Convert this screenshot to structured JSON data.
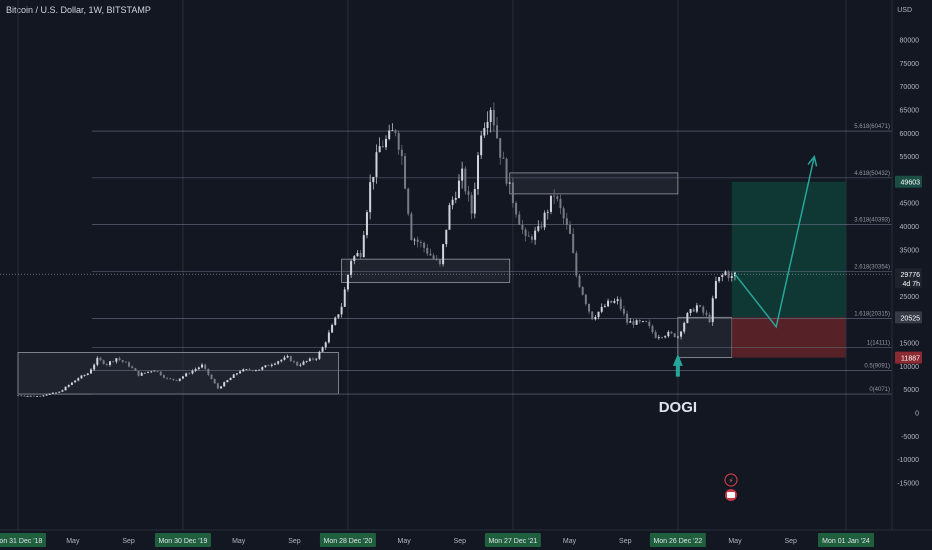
{
  "header": {
    "title": "Bitcoin / U.S. Dollar, 1W, BITSTAMP",
    "currency": "USD"
  },
  "chart_data": {
    "type": "candlestick",
    "symbol": "Bitcoin / U.S. Dollar",
    "interval": "1W",
    "exchange": "BITSTAMP",
    "yaxis": {
      "unit": "USD",
      "ticks": [
        80000,
        75000,
        70000,
        65000,
        60000,
        55000,
        50000,
        45000,
        40000,
        35000,
        30000,
        25000,
        15000,
        10000,
        5000,
        0,
        -5000,
        -10000,
        -15000
      ],
      "tick_labels": [
        "80000",
        "75000",
        "70000",
        "65000",
        "60000",
        "55000",
        "50000",
        "45000",
        "40000",
        "35000",
        "30000",
        "25000",
        "15000",
        "10000",
        "5000",
        "0",
        "-5000",
        "-10000",
        "-15000"
      ]
    },
    "xaxis": {
      "dates": [
        "2018-12-31",
        "2019-05-01",
        "2019-09-01",
        "2019-12-30",
        "2020-05-01",
        "2020-09-01",
        "2020-12-28",
        "2021-05-01",
        "2021-09-01",
        "2021-12-27",
        "2022-05-01",
        "2022-09-01",
        "2022-12-26",
        "2023-05-01",
        "2023-09-01",
        "2024-01-01"
      ],
      "labels": [
        "Mon 31 Dec '18",
        "May",
        "Sep",
        "Mon 30 Dec '19",
        "May",
        "Sep",
        "Mon 28 Dec '20",
        "May",
        "Sep",
        "Mon 27 Dec '21",
        "May",
        "Sep",
        "Mon 26 Dec '22",
        "May",
        "Sep",
        "Mon 01 Jan '24"
      ],
      "highlighted": [
        "Mon 31 Dec '18",
        "Mon 30 Dec '19",
        "Mon 28 Dec '20",
        "Mon 27 Dec '21",
        "Mon 26 Dec '22",
        "Mon 01 Jan '24"
      ]
    },
    "price_path": [
      [
        "2018-12-31",
        3800
      ],
      [
        "2019-02-10",
        3600
      ],
      [
        "2019-04-01",
        4500
      ],
      [
        "2019-05-13",
        7500
      ],
      [
        "2019-06-03",
        8500
      ],
      [
        "2019-06-24",
        11500
      ],
      [
        "2019-07-15",
        10500
      ],
      [
        "2019-08-05",
        11800
      ],
      [
        "2019-09-01",
        10300
      ],
      [
        "2019-09-23",
        8200
      ],
      [
        "2019-10-28",
        9300
      ],
      [
        "2019-11-25",
        7300
      ],
      [
        "2019-12-16",
        7100
      ],
      [
        "2020-01-13",
        8700
      ],
      [
        "2020-02-10",
        10200
      ],
      [
        "2020-03-16",
        5300
      ],
      [
        "2020-04-06",
        7000
      ],
      [
        "2020-05-04",
        9100
      ],
      [
        "2020-06-15",
        9400
      ],
      [
        "2020-07-27",
        11200
      ],
      [
        "2020-08-17",
        11900
      ],
      [
        "2020-09-07",
        10300
      ],
      [
        "2020-10-19",
        11900
      ],
      [
        "2020-11-02",
        14000
      ],
      [
        "2020-11-23",
        18500
      ],
      [
        "2020-12-14",
        23000
      ],
      [
        "2021-01-04",
        33000
      ],
      [
        "2021-01-25",
        34500
      ],
      [
        "2021-02-15",
        49000
      ],
      [
        "2021-03-08",
        57000
      ],
      [
        "2021-03-29",
        59000
      ],
      [
        "2021-04-12",
        61000
      ],
      [
        "2021-04-26",
        55000
      ],
      [
        "2021-05-17",
        38000
      ],
      [
        "2021-06-14",
        35500
      ],
      [
        "2021-07-19",
        31500
      ],
      [
        "2021-08-09",
        44000
      ],
      [
        "2021-09-06",
        51000
      ],
      [
        "2021-09-27",
        43000
      ],
      [
        "2021-10-18",
        61000
      ],
      [
        "2021-11-08",
        66000
      ],
      [
        "2021-11-29",
        56000
      ],
      [
        "2021-12-20",
        48000
      ],
      [
        "2022-01-24",
        37000
      ],
      [
        "2022-02-21",
        39000
      ],
      [
        "2022-03-28",
        47000
      ],
      [
        "2022-05-02",
        38000
      ],
      [
        "2022-05-16",
        29500
      ],
      [
        "2022-06-13",
        22000
      ],
      [
        "2022-06-20",
        20500
      ],
      [
        "2022-07-25",
        23500
      ],
      [
        "2022-08-15",
        24000
      ],
      [
        "2022-09-05",
        19500
      ],
      [
        "2022-10-17",
        19200
      ],
      [
        "2022-11-07",
        16500
      ],
      [
        "2022-12-05",
        17000
      ],
      [
        "2022-12-26",
        16500
      ],
      [
        "2023-01-16",
        21000
      ],
      [
        "2023-02-06",
        23000
      ],
      [
        "2023-03-06",
        20000
      ],
      [
        "2023-03-20",
        28000
      ],
      [
        "2023-04-10",
        30200
      ],
      [
        "2023-04-24",
        29000
      ],
      [
        "2023-05-01",
        29776
      ]
    ],
    "fib_levels": [
      {
        "label": "5.618(60471)",
        "value": 60471
      },
      {
        "label": "4.618(50432)",
        "value": 50432
      },
      {
        "label": "3.618(40393)",
        "value": 40393
      },
      {
        "label": "2.618(30354)",
        "value": 30354
      },
      {
        "label": "1.618(20315)",
        "value": 20315
      },
      {
        "label": "1(14111)",
        "value": 14111
      },
      {
        "label": "0.5(9091)",
        "value": 9091
      },
      {
        "label": "0(4071)",
        "value": 4071
      }
    ],
    "zones": [
      {
        "from": "2018-12-31",
        "to": "2020-12-07",
        "low": 4071,
        "high": 13000
      },
      {
        "from": "2020-12-14",
        "to": "2021-12-20",
        "low": 28000,
        "high": 33000
      },
      {
        "from": "2021-12-20",
        "to": "2022-12-26",
        "low": 47000,
        "high": 51500
      },
      {
        "from": "2022-12-26",
        "to": "2023-04-24",
        "low": 11887,
        "high": 20525
      }
    ],
    "position": {
      "from": "2023-04-24",
      "to": "2023-12-31",
      "entry": 20525,
      "target": 49603,
      "stop": 11887
    },
    "projection": [
      [
        "2023-05-01",
        29776
      ],
      [
        "2023-07-31",
        18500
      ],
      [
        "2023-10-23",
        55000
      ]
    ],
    "annotation": {
      "text": "DOGI",
      "date": "2022-12-26",
      "value": 9000
    },
    "price_labels": {
      "target": "49603",
      "current": "29776",
      "countdown": "4d 7h",
      "entry": "20525",
      "stop": "11887"
    },
    "colors": {
      "background": "#131722",
      "grid": "#2a2e39",
      "candle_up": "#d1d4dc",
      "candle_down": "#787b86",
      "fib": "#6a7084",
      "zone_fill": "#2a2e39",
      "zone_stroke": "#9598a1",
      "profit": "#0f3b36",
      "loss": "#5e2429",
      "target_label": "#1a4d44",
      "stop_label": "#8c2a32",
      "arrow": "#26a69a"
    }
  }
}
